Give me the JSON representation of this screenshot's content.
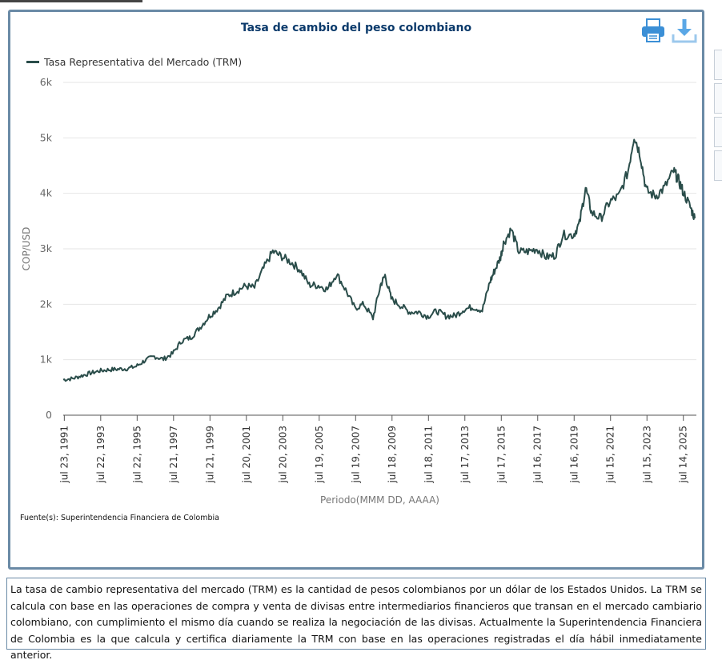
{
  "chart_data": {
    "type": "line",
    "title": "Tasa de cambio del peso colombiano",
    "xlabel": "Periodo(MMM DD, AAAA)",
    "ylabel": "COP/USD",
    "ylim": [
      0,
      6000
    ],
    "y_ticks": [
      "0",
      "1k",
      "2k",
      "3k",
      "4k",
      "5k",
      "6k"
    ],
    "x_ticks": [
      "jul 23, 1991",
      "jul 22, 1993",
      "jul 22, 1995",
      "jul 21, 1997",
      "jul 21, 1999",
      "jul 20, 2001",
      "jul 20, 2003",
      "jul 19, 2005",
      "jul 19, 2007",
      "jul 18, 2009",
      "jul 18, 2011",
      "jul 17, 2013",
      "jul 17, 2015",
      "jul 16, 2017",
      "jul 16, 2019",
      "jul 15, 2021",
      "jul 15, 2023",
      "jul 14, 2025"
    ],
    "grid": true,
    "legend_position": "top-left",
    "series": [
      {
        "name": "Tasa Representativa del Mercado (TRM)",
        "color": "#2a4d4a",
        "points": [
          {
            "x": "1991-07",
            "y": 640
          },
          {
            "x": "1992-01",
            "y": 660
          },
          {
            "x": "1992-07",
            "y": 710
          },
          {
            "x": "1993-01",
            "y": 760
          },
          {
            "x": "1993-07",
            "y": 800
          },
          {
            "x": "1994-01",
            "y": 820
          },
          {
            "x": "1994-07",
            "y": 830
          },
          {
            "x": "1995-01",
            "y": 840
          },
          {
            "x": "1995-07",
            "y": 880
          },
          {
            "x": "1996-01",
            "y": 990
          },
          {
            "x": "1996-07",
            "y": 1060
          },
          {
            "x": "1997-01",
            "y": 1010
          },
          {
            "x": "1997-07",
            "y": 1110
          },
          {
            "x": "1998-01",
            "y": 1340
          },
          {
            "x": "1998-07",
            "y": 1400
          },
          {
            "x": "1999-01",
            "y": 1580
          },
          {
            "x": "1999-07",
            "y": 1780
          },
          {
            "x": "2000-01",
            "y": 1930
          },
          {
            "x": "2000-07",
            "y": 2150
          },
          {
            "x": "2001-01",
            "y": 2240
          },
          {
            "x": "2001-07",
            "y": 2330
          },
          {
            "x": "2002-01",
            "y": 2300
          },
          {
            "x": "2002-07",
            "y": 2650
          },
          {
            "x": "2003-01",
            "y": 2950
          },
          {
            "x": "2003-07",
            "y": 2860
          },
          {
            "x": "2004-01",
            "y": 2760
          },
          {
            "x": "2004-07",
            "y": 2620
          },
          {
            "x": "2005-01",
            "y": 2350
          },
          {
            "x": "2005-07",
            "y": 2340
          },
          {
            "x": "2006-01",
            "y": 2270
          },
          {
            "x": "2006-07",
            "y": 2550
          },
          {
            "x": "2007-01",
            "y": 2260
          },
          {
            "x": "2007-07",
            "y": 1930
          },
          {
            "x": "2008-01",
            "y": 2000
          },
          {
            "x": "2008-07",
            "y": 1750
          },
          {
            "x": "2008-12",
            "y": 2350
          },
          {
            "x": "2009-03",
            "y": 2520
          },
          {
            "x": "2009-07",
            "y": 2100
          },
          {
            "x": "2010-01",
            "y": 1980
          },
          {
            "x": "2010-07",
            "y": 1860
          },
          {
            "x": "2011-01",
            "y": 1860
          },
          {
            "x": "2011-07",
            "y": 1780
          },
          {
            "x": "2012-01",
            "y": 1880
          },
          {
            "x": "2012-07",
            "y": 1790
          },
          {
            "x": "2013-01",
            "y": 1790
          },
          {
            "x": "2013-07",
            "y": 1910
          },
          {
            "x": "2014-01",
            "y": 1950
          },
          {
            "x": "2014-07",
            "y": 1890
          },
          {
            "x": "2014-12",
            "y": 2400
          },
          {
            "x": "2015-03",
            "y": 2600
          },
          {
            "x": "2015-07",
            "y": 2850
          },
          {
            "x": "2015-09",
            "y": 3100
          },
          {
            "x": "2016-02",
            "y": 3350
          },
          {
            "x": "2016-07",
            "y": 2950
          },
          {
            "x": "2017-01",
            "y": 2950
          },
          {
            "x": "2017-07",
            "y": 3000
          },
          {
            "x": "2018-01",
            "y": 2850
          },
          {
            "x": "2018-07",
            "y": 2880
          },
          {
            "x": "2018-12",
            "y": 3250
          },
          {
            "x": "2019-07",
            "y": 3250
          },
          {
            "x": "2019-11",
            "y": 3450
          },
          {
            "x": "2020-03",
            "y": 4100
          },
          {
            "x": "2020-07",
            "y": 3650
          },
          {
            "x": "2021-01",
            "y": 3550
          },
          {
            "x": "2021-07",
            "y": 3850
          },
          {
            "x": "2022-01",
            "y": 3950
          },
          {
            "x": "2022-07",
            "y": 4400
          },
          {
            "x": "2022-11",
            "y": 5050
          },
          {
            "x": "2023-03",
            "y": 4700
          },
          {
            "x": "2023-07",
            "y": 4050
          },
          {
            "x": "2024-01",
            "y": 3950
          },
          {
            "x": "2024-07",
            "y": 4100
          },
          {
            "x": "2025-01",
            "y": 4400
          },
          {
            "x": "2025-04",
            "y": 4250
          },
          {
            "x": "2025-07",
            "y": 4050
          },
          {
            "x": "2025-12",
            "y": 3750
          },
          {
            "x": "2026-03",
            "y": 3550
          }
        ]
      }
    ]
  },
  "icons": {
    "print": "printer-icon",
    "download": "download-icon"
  },
  "source": "Fuente(s): Superintendencia Financiera de Colombia",
  "description": "La tasa de cambio representativa del mercado (TRM) es la cantidad de pesos colombianos por un dólar de los Estados Unidos. La TRM se calcula con base en las operaciones de compra y venta de divisas entre intermediarios financieros que transan en el mercado cambiario colombiano, con cumplimiento el mismo día cuando se realiza la negociación de las divisas. Actualmente la Superintendencia Financiera de Colombia es la que calcula y certifica diariamente la TRM con base en las operaciones registradas el día hábil inmediatamente anterior."
}
